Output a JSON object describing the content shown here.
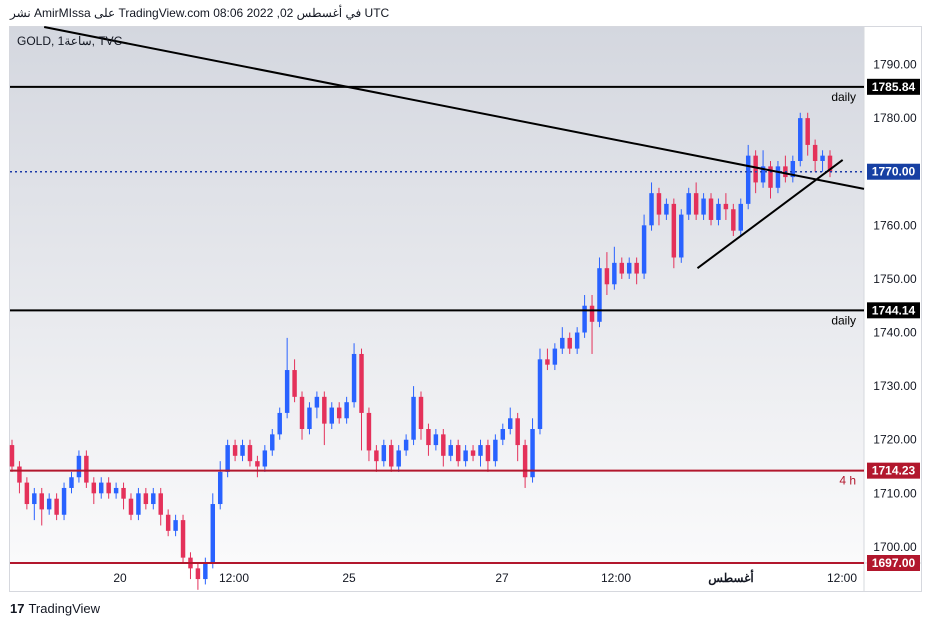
{
  "header": {
    "text": "نشر AmirMIssa على TradingView.com في أغسطس 02, 2022 08:06 UTC"
  },
  "symbol": {
    "label": "GOLD, 1ساعة, TVC"
  },
  "footer": {
    "logo": "17",
    "brand": "TradingView"
  },
  "colors": {
    "up": "#2962ff",
    "down": "#e4315a",
    "support": "#b2172d",
    "black": "#000000",
    "dotted": "#1b3aa8"
  },
  "chart_data": {
    "type": "candlestick",
    "ylim": [
      1697,
      1797
    ],
    "yticks": [
      "1790.00",
      "1780.00",
      "1760.00",
      "1750.00",
      "1740.00",
      "1730.00",
      "1720.00",
      "1710.00",
      "1700.00"
    ],
    "xticks": [
      "20",
      "12:00",
      "25",
      "27",
      "12:00",
      "أغسطس",
      "12:00"
    ],
    "price_labels": [
      {
        "value": 1785.84,
        "text": "1785.84",
        "style": "black"
      },
      {
        "value": 1770.0,
        "text": "1770.00",
        "style": "blue"
      },
      {
        "value": 1744.14,
        "text": "1744.14",
        "style": "black"
      },
      {
        "value": 1714.23,
        "text": "1714.23",
        "style": "red"
      },
      {
        "value": 1697.0,
        "text": "1697.00",
        "style": "red"
      }
    ],
    "horizontal_lines": [
      {
        "value": 1785.84,
        "label": "daily",
        "style": "black"
      },
      {
        "value": 1770.0,
        "label": "",
        "style": "dotted"
      },
      {
        "value": 1744.14,
        "label": "daily",
        "style": "black"
      },
      {
        "value": 1714.23,
        "label": "4 h",
        "style": "red"
      },
      {
        "value": 1697.0,
        "label": "",
        "style": "red"
      }
    ],
    "trendlines": [
      {
        "x1": 0.04,
        "y1": 1797.0,
        "x2": 1.0,
        "y2": 1766.8
      },
      {
        "x1": 0.805,
        "y1": 1752.0,
        "x2": 0.975,
        "y2": 1772.2
      }
    ],
    "candles": [
      [
        1719,
        1715,
        1720,
        1714
      ],
      [
        1715,
        1712,
        1716,
        1710
      ],
      [
        1712,
        1708,
        1713,
        1707
      ],
      [
        1708,
        1710,
        1711,
        1705
      ],
      [
        1710,
        1707,
        1711,
        1704
      ],
      [
        1707,
        1709,
        1710,
        1706
      ],
      [
        1709,
        1706,
        1710,
        1705
      ],
      [
        1706,
        1711,
        1712,
        1705
      ],
      [
        1711,
        1713,
        1714,
        1710
      ],
      [
        1713,
        1717,
        1718,
        1712
      ],
      [
        1717,
        1712,
        1718,
        1711
      ],
      [
        1712,
        1710,
        1713,
        1708
      ],
      [
        1710,
        1712,
        1713,
        1709
      ],
      [
        1712,
        1710,
        1713,
        1709
      ],
      [
        1710,
        1711,
        1712,
        1709
      ],
      [
        1711,
        1709,
        1712,
        1707
      ],
      [
        1709,
        1706,
        1710,
        1705
      ],
      [
        1706,
        1710,
        1711,
        1705
      ],
      [
        1710,
        1708,
        1711,
        1707
      ],
      [
        1708,
        1710,
        1711,
        1707
      ],
      [
        1710,
        1706,
        1711,
        1704
      ],
      [
        1706,
        1703,
        1707,
        1702
      ],
      [
        1703,
        1705,
        1706,
        1702
      ],
      [
        1705,
        1698,
        1706,
        1697
      ],
      [
        1698,
        1696,
        1699,
        1694
      ],
      [
        1696,
        1694,
        1697,
        1692
      ],
      [
        1694,
        1697,
        1698,
        1693
      ],
      [
        1697,
        1708,
        1710,
        1696
      ],
      [
        1708,
        1714,
        1716,
        1707
      ],
      [
        1714,
        1719,
        1720,
        1713
      ],
      [
        1719,
        1717,
        1720,
        1716
      ],
      [
        1717,
        1719,
        1720,
        1716
      ],
      [
        1719,
        1716,
        1720,
        1715
      ],
      [
        1716,
        1715,
        1717,
        1713
      ],
      [
        1715,
        1718,
        1719,
        1714
      ],
      [
        1718,
        1721,
        1722,
        1717
      ],
      [
        1721,
        1725,
        1726,
        1720
      ],
      [
        1725,
        1733,
        1739,
        1724
      ],
      [
        1733,
        1728,
        1735,
        1727
      ],
      [
        1728,
        1722,
        1729,
        1720
      ],
      [
        1722,
        1726,
        1727,
        1721
      ],
      [
        1726,
        1728,
        1729,
        1724
      ],
      [
        1728,
        1723,
        1729,
        1719
      ],
      [
        1723,
        1726,
        1727,
        1722
      ],
      [
        1726,
        1724,
        1727,
        1723
      ],
      [
        1724,
        1727,
        1728,
        1723
      ],
      [
        1727,
        1736,
        1738,
        1726
      ],
      [
        1736,
        1725,
        1737,
        1718
      ],
      [
        1725,
        1718,
        1726,
        1716
      ],
      [
        1718,
        1716,
        1719,
        1714
      ],
      [
        1716,
        1719,
        1720,
        1715
      ],
      [
        1719,
        1715,
        1720,
        1714
      ],
      [
        1715,
        1718,
        1719,
        1714
      ],
      [
        1718,
        1720,
        1721,
        1717
      ],
      [
        1720,
        1728,
        1730,
        1719
      ],
      [
        1728,
        1722,
        1729,
        1720
      ],
      [
        1722,
        1719,
        1723,
        1717
      ],
      [
        1719,
        1721,
        1722,
        1718
      ],
      [
        1721,
        1717,
        1722,
        1715
      ],
      [
        1717,
        1719,
        1720,
        1716
      ],
      [
        1719,
        1716,
        1720,
        1715
      ],
      [
        1716,
        1718,
        1719,
        1715
      ],
      [
        1718,
        1717,
        1719,
        1716
      ],
      [
        1717,
        1719,
        1720,
        1715
      ],
      [
        1719,
        1716,
        1720,
        1714
      ],
      [
        1716,
        1720,
        1721,
        1715
      ],
      [
        1720,
        1722,
        1723,
        1719
      ],
      [
        1722,
        1724,
        1726,
        1721
      ],
      [
        1724,
        1719,
        1725,
        1716
      ],
      [
        1719,
        1713,
        1720,
        1711
      ],
      [
        1713,
        1722,
        1724,
        1712
      ],
      [
        1722,
        1735,
        1737,
        1721
      ],
      [
        1735,
        1734,
        1737,
        1733
      ],
      [
        1734,
        1737,
        1738,
        1733
      ],
      [
        1737,
        1739,
        1741,
        1736
      ],
      [
        1739,
        1737,
        1740,
        1736
      ],
      [
        1737,
        1740,
        1741,
        1736
      ],
      [
        1740,
        1745,
        1747,
        1739
      ],
      [
        1745,
        1742,
        1747,
        1736
      ],
      [
        1742,
        1752,
        1754,
        1741
      ],
      [
        1752,
        1749,
        1755,
        1747
      ],
      [
        1749,
        1753,
        1756,
        1748
      ],
      [
        1753,
        1751,
        1754,
        1750
      ],
      [
        1751,
        1753,
        1754,
        1750
      ],
      [
        1753,
        1751,
        1754,
        1749
      ],
      [
        1751,
        1760,
        1762,
        1750
      ],
      [
        1760,
        1766,
        1768,
        1759
      ],
      [
        1766,
        1762,
        1767,
        1760
      ],
      [
        1762,
        1764,
        1765,
        1761
      ],
      [
        1764,
        1754,
        1765,
        1752
      ],
      [
        1754,
        1762,
        1763,
        1753
      ],
      [
        1762,
        1766,
        1767,
        1761
      ],
      [
        1766,
        1762,
        1768,
        1761
      ],
      [
        1762,
        1765,
        1766,
        1761
      ],
      [
        1765,
        1761,
        1766,
        1760
      ],
      [
        1761,
        1764,
        1765,
        1760
      ],
      [
        1764,
        1763,
        1766,
        1761
      ],
      [
        1763,
        1759,
        1764,
        1758
      ],
      [
        1759,
        1764,
        1765,
        1758
      ],
      [
        1764,
        1773,
        1775,
        1763
      ],
      [
        1773,
        1768,
        1774,
        1766
      ],
      [
        1768,
        1771,
        1774,
        1767
      ],
      [
        1771,
        1767,
        1772,
        1765
      ],
      [
        1767,
        1771,
        1772,
        1766
      ],
      [
        1771,
        1769,
        1773,
        1768
      ],
      [
        1769,
        1772,
        1773,
        1768
      ],
      [
        1772,
        1780,
        1781,
        1771
      ],
      [
        1780,
        1775,
        1781,
        1773
      ],
      [
        1775,
        1772,
        1776,
        1770
      ],
      [
        1772,
        1773,
        1774,
        1770
      ],
      [
        1773,
        1770,
        1774,
        1769
      ]
    ]
  }
}
